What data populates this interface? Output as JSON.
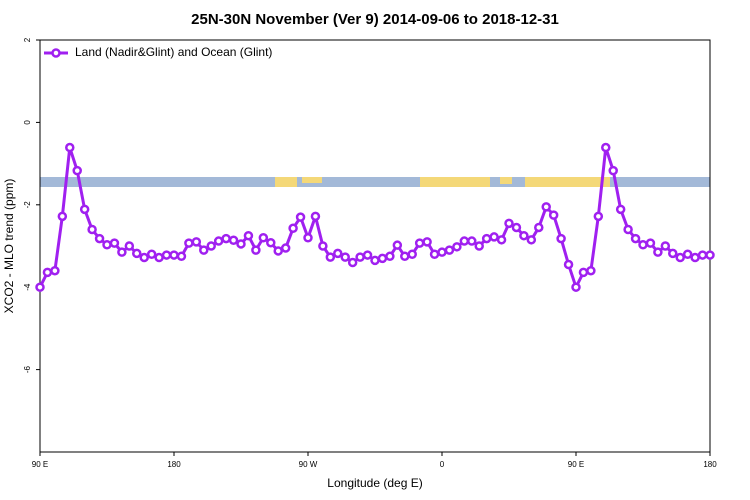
{
  "chart_data": {
    "type": "line",
    "title": "25N-30N November (Ver 9)   2014-09-06 to 2018-12-31",
    "x_label": "Longitude (deg E)",
    "y_label": "XCO2 - MLO trend (ppm)",
    "x": [
      90,
      95,
      100,
      105,
      110,
      115,
      120,
      125,
      130,
      135,
      140,
      145,
      150,
      155,
      160,
      165,
      170,
      175,
      180,
      185,
      190,
      195,
      200,
      205,
      210,
      215,
      220,
      225,
      230,
      235,
      240,
      245,
      250,
      255,
      260,
      265,
      270,
      275,
      280,
      285,
      290,
      295,
      300,
      305,
      310,
      315,
      320,
      325,
      330,
      335,
      340,
      345,
      350,
      355,
      360,
      365,
      370,
      375,
      380,
      385,
      390,
      395,
      400,
      405,
      410,
      415,
      420,
      425,
      430,
      435,
      440,
      445,
      450,
      455,
      460,
      465,
      470,
      475,
      480,
      485,
      490,
      495,
      500,
      505,
      510,
      515,
      520,
      525,
      530,
      535,
      540
    ],
    "series": [
      {
        "name": "Land (Nadir&Glint) and Ocean (Glint)",
        "color": "#a020f0",
        "values": [
          -4.0,
          -3.64,
          -3.6,
          -2.28,
          -0.61,
          -1.17,
          -2.11,
          -2.6,
          -2.82,
          -2.97,
          -2.93,
          -3.15,
          -3.0,
          -3.18,
          -3.28,
          -3.2,
          -3.28,
          -3.22,
          -3.22,
          -3.25,
          -2.93,
          -2.9,
          -3.1,
          -3.0,
          -2.88,
          -2.82,
          -2.86,
          -2.95,
          -2.75,
          -3.1,
          -2.8,
          -2.92,
          -3.12,
          -3.05,
          -2.57,
          -2.3,
          -2.8,
          -2.28,
          -3.0,
          -3.27,
          -3.18,
          -3.27,
          -3.4,
          -3.27,
          -3.22,
          -3.35,
          -3.3,
          -3.25,
          -2.98,
          -3.25,
          -3.2,
          -2.93,
          -2.9,
          -3.2,
          -3.15,
          -3.1,
          -3.02,
          -2.88,
          -2.88,
          -3.0,
          -2.82,
          -2.78,
          -2.85,
          -2.45,
          -2.55,
          -2.75,
          -2.85,
          -2.55,
          -2.05,
          -2.25,
          -2.82,
          -3.45,
          -4.0,
          -3.64,
          -3.6,
          -2.28,
          -0.61,
          -1.17,
          -2.11,
          -2.6,
          -2.82,
          -2.97,
          -2.93,
          -3.15,
          -3.0,
          -3.18,
          -3.28,
          -3.2,
          -3.28,
          -3.22,
          -3.22
        ]
      }
    ],
    "xlim": [
      90,
      540
    ],
    "xticks": [
      {
        "value": 90,
        "label": "90 E"
      },
      {
        "value": 180,
        "label": "180"
      },
      {
        "value": 270,
        "label": "90 W"
      },
      {
        "value": 360,
        "label": "0"
      },
      {
        "value": 450,
        "label": "90 E"
      },
      {
        "value": 540,
        "label": "180"
      }
    ],
    "ylim": [
      -8,
      2
    ],
    "yticks": [
      2,
      0,
      -2,
      -4,
      -6
    ],
    "legend_position": "top-left"
  }
}
